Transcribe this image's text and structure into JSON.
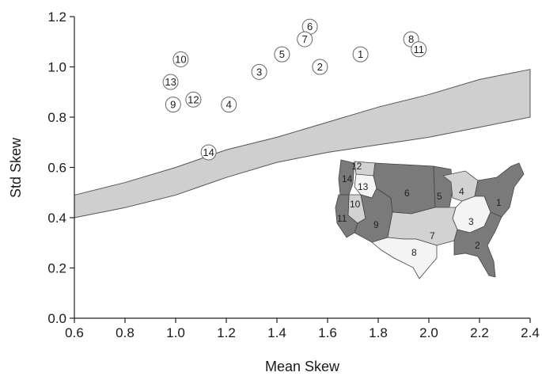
{
  "chart_data": {
    "type": "scatter",
    "xlabel": "Mean Skew",
    "ylabel": "Std Skew",
    "xlim": [
      0.6,
      2.4
    ],
    "ylim": [
      0.0,
      1.2
    ],
    "x_ticks": [
      "0.6",
      "0.8",
      "1.0",
      "1.2",
      "1.4",
      "1.6",
      "1.8",
      "2.0",
      "2.2",
      "2.4"
    ],
    "y_ticks": [
      "0.0",
      "0.2",
      "0.4",
      "0.6",
      "0.8",
      "1.0",
      "1.2"
    ],
    "grid": false,
    "points": [
      {
        "label": "1",
        "x": 1.73,
        "y": 1.05
      },
      {
        "label": "2",
        "x": 1.57,
        "y": 1.0
      },
      {
        "label": "3",
        "x": 1.33,
        "y": 0.98
      },
      {
        "label": "4",
        "x": 1.21,
        "y": 0.85
      },
      {
        "label": "5",
        "x": 1.42,
        "y": 1.05
      },
      {
        "label": "6",
        "x": 1.53,
        "y": 1.16
      },
      {
        "label": "7",
        "x": 1.51,
        "y": 1.11
      },
      {
        "label": "8",
        "x": 1.93,
        "y": 1.11
      },
      {
        "label": "9",
        "x": 0.99,
        "y": 0.85
      },
      {
        "label": "10",
        "x": 1.02,
        "y": 1.03
      },
      {
        "label": "11",
        "x": 1.96,
        "y": 1.07
      },
      {
        "label": "12",
        "x": 1.07,
        "y": 0.87
      },
      {
        "label": "13",
        "x": 0.98,
        "y": 0.94
      },
      {
        "label": "14",
        "x": 1.13,
        "y": 0.66
      }
    ],
    "band": {
      "color": "#cfcfcf",
      "upper": [
        [
          0.6,
          0.49
        ],
        [
          0.8,
          0.54
        ],
        [
          1.0,
          0.6
        ],
        [
          1.2,
          0.67
        ],
        [
          1.4,
          0.72
        ],
        [
          1.6,
          0.78
        ],
        [
          1.8,
          0.84
        ],
        [
          2.0,
          0.89
        ],
        [
          2.2,
          0.95
        ],
        [
          2.4,
          0.99
        ]
      ],
      "lower": [
        [
          0.6,
          0.4
        ],
        [
          0.8,
          0.44
        ],
        [
          1.0,
          0.49
        ],
        [
          1.2,
          0.56
        ],
        [
          1.4,
          0.62
        ],
        [
          1.6,
          0.66
        ],
        [
          1.8,
          0.69
        ],
        [
          2.0,
          0.72
        ],
        [
          2.2,
          0.76
        ],
        [
          2.4,
          0.8
        ]
      ]
    },
    "inset_map": {
      "region_labels": [
        "1",
        "2",
        "3",
        "4",
        "5",
        "6",
        "7",
        "8",
        "9",
        "10",
        "11",
        "12",
        "13",
        "14"
      ],
      "colors": {
        "dark": "#7a7a7a",
        "mid": "#a9a9a9",
        "light": "#d2d2d2",
        "white": "#f4f4f4"
      }
    }
  }
}
